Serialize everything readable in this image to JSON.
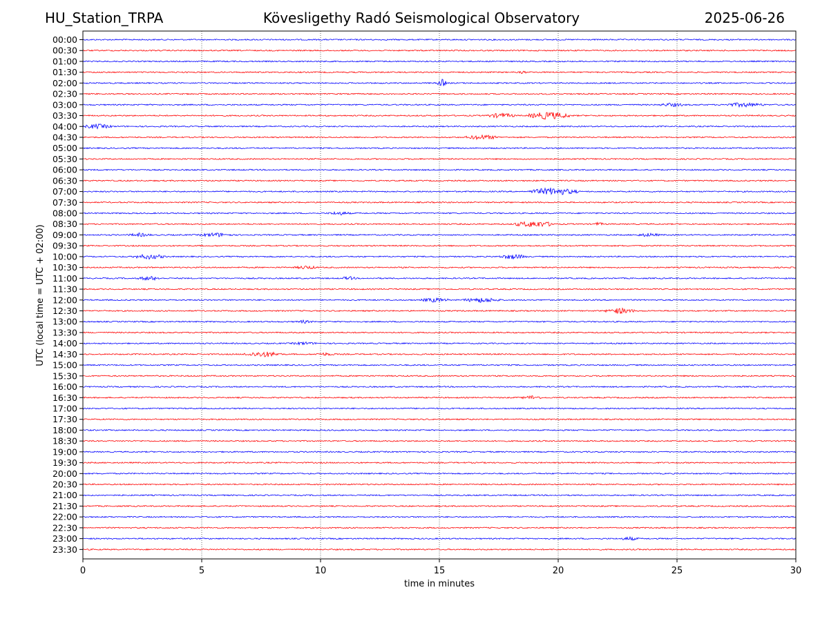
{
  "header": {
    "station": "HU_Station_TRPA",
    "observatory": "Kövesligethy Radó Seismological Observatory",
    "date": "2025-06-26"
  },
  "chart_data": {
    "type": "line",
    "title": "Kövesligethy Radó Seismological Observatory",
    "xlabel": "time in minutes",
    "ylabel": "UTC (local time = UTC + 02:00)",
    "xlim": [
      0,
      30
    ],
    "xticks": [
      0,
      5,
      10,
      15,
      20,
      25,
      30
    ],
    "grid": "vertical dotted at 5-minute ticks",
    "colors": {
      "even_rows": "#0000ff",
      "odd_rows": "#ff0000",
      "axes": "#000000"
    },
    "rows": [
      "00:00",
      "00:30",
      "01:00",
      "01:30",
      "02:00",
      "02:30",
      "03:00",
      "03:30",
      "04:00",
      "04:30",
      "05:00",
      "05:30",
      "06:00",
      "06:30",
      "07:00",
      "07:30",
      "08:00",
      "08:30",
      "09:00",
      "09:30",
      "10:00",
      "10:30",
      "11:00",
      "11:30",
      "12:00",
      "12:30",
      "13:00",
      "13:30",
      "14:00",
      "14:30",
      "15:00",
      "15:30",
      "16:00",
      "16:30",
      "17:00",
      "17:30",
      "18:00",
      "18:30",
      "19:00",
      "19:30",
      "20:00",
      "20:30",
      "21:00",
      "21:30",
      "22:00",
      "22:30",
      "23:00",
      "23:30"
    ],
    "bursts": [
      {
        "row": "01:30",
        "minute": 18.5,
        "width_min": 0.3,
        "amplitude": 3
      },
      {
        "row": "02:00",
        "minute": 15.1,
        "width_min": 0.4,
        "amplitude": 6
      },
      {
        "row": "03:00",
        "minute": 24.8,
        "width_min": 1.2,
        "amplitude": 3
      },
      {
        "row": "03:00",
        "minute": 27.8,
        "width_min": 1.8,
        "amplitude": 3.5
      },
      {
        "row": "03:30",
        "minute": 17.6,
        "width_min": 1.2,
        "amplitude": 4
      },
      {
        "row": "03:30",
        "minute": 19.6,
        "width_min": 1.8,
        "amplitude": 6
      },
      {
        "row": "04:00",
        "minute": 0.6,
        "width_min": 1.2,
        "amplitude": 4
      },
      {
        "row": "04:30",
        "minute": 16.8,
        "width_min": 1.4,
        "amplitude": 4
      },
      {
        "row": "07:00",
        "minute": 19.8,
        "width_min": 2.0,
        "amplitude": 6
      },
      {
        "row": "08:00",
        "minute": 10.8,
        "width_min": 1.0,
        "amplitude": 3
      },
      {
        "row": "08:30",
        "minute": 19.0,
        "width_min": 1.8,
        "amplitude": 5
      },
      {
        "row": "08:30",
        "minute": 21.7,
        "width_min": 0.4,
        "amplitude": 3
      },
      {
        "row": "09:00",
        "minute": 2.4,
        "width_min": 1.0,
        "amplitude": 3
      },
      {
        "row": "09:00",
        "minute": 5.6,
        "width_min": 1.4,
        "amplitude": 3.5
      },
      {
        "row": "09:00",
        "minute": 23.8,
        "width_min": 1.0,
        "amplitude": 3
      },
      {
        "row": "10:00",
        "minute": 2.8,
        "width_min": 1.4,
        "amplitude": 4
      },
      {
        "row": "10:00",
        "minute": 18.1,
        "width_min": 1.2,
        "amplitude": 4
      },
      {
        "row": "10:30",
        "minute": 9.4,
        "width_min": 1.0,
        "amplitude": 3
      },
      {
        "row": "11:00",
        "minute": 2.8,
        "width_min": 1.0,
        "amplitude": 3.5
      },
      {
        "row": "11:00",
        "minute": 11.2,
        "width_min": 0.6,
        "amplitude": 3
      },
      {
        "row": "12:00",
        "minute": 14.8,
        "width_min": 1.2,
        "amplitude": 3.5
      },
      {
        "row": "12:00",
        "minute": 16.8,
        "width_min": 1.6,
        "amplitude": 4
      },
      {
        "row": "12:30",
        "minute": 22.6,
        "width_min": 1.2,
        "amplitude": 4.5
      },
      {
        "row": "13:00",
        "minute": 9.3,
        "width_min": 0.8,
        "amplitude": 2.5
      },
      {
        "row": "14:00",
        "minute": 9.3,
        "width_min": 1.2,
        "amplitude": 2.5
      },
      {
        "row": "14:30",
        "minute": 7.6,
        "width_min": 1.6,
        "amplitude": 4.5
      },
      {
        "row": "14:30",
        "minute": 10.2,
        "width_min": 1.0,
        "amplitude": 2.5
      },
      {
        "row": "16:30",
        "minute": 18.9,
        "width_min": 0.8,
        "amplitude": 3.5
      },
      {
        "row": "23:00",
        "minute": 23.0,
        "width_min": 0.8,
        "amplitude": 3
      }
    ]
  }
}
